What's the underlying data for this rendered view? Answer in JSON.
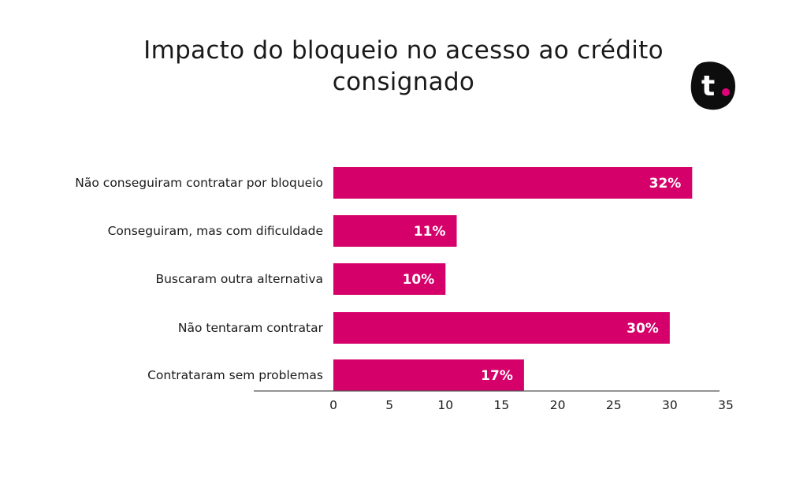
{
  "title": "Impacto do bloqueio no acesso ao crédito consignado",
  "logo": {
    "icon": "t-logo-icon",
    "text": "t"
  },
  "colors": {
    "bar": "#d6006b",
    "logo_bg": "#0d0d0d",
    "logo_dot": "#e0007a",
    "axis": "#555555"
  },
  "chart_data": {
    "type": "bar",
    "orientation": "horizontal",
    "categories": [
      "Não conseguiram contratar por bloqueio",
      "Conseguiram, mas com dificuldade",
      "Buscaram outra alternativa",
      "Não tentaram contratar",
      "Contrataram sem problemas"
    ],
    "values": [
      32,
      11,
      10,
      30,
      17
    ],
    "value_labels": [
      "32%",
      "11%",
      "10%",
      "30%",
      "17%"
    ],
    "xlim": [
      0,
      35
    ],
    "xticks": [
      "0",
      "5",
      "10",
      "15",
      "20",
      "25",
      "30",
      "35"
    ],
    "grid": false,
    "legend": "none"
  }
}
